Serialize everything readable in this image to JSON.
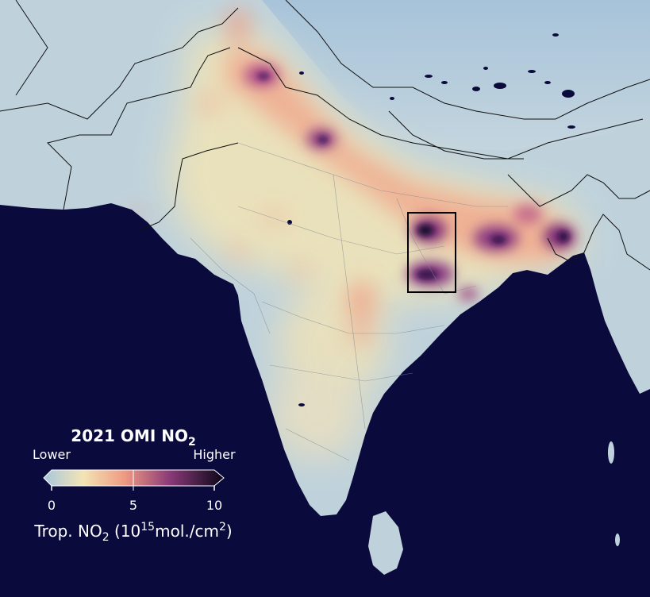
{
  "legend": {
    "title_main": "2021 OMI NO",
    "title_sub": "2",
    "label_low": "Lower",
    "label_high": "Higher",
    "ticks": [
      "0",
      "5",
      "10"
    ],
    "unit_a": "Trop. NO",
    "unit_b": "2",
    "unit_c": " (10",
    "unit_d": "15",
    "unit_e": "mol./cm",
    "unit_f": "2",
    "unit_g": ")",
    "range": [
      0,
      10
    ]
  },
  "colors": {
    "ocean": "#0a0a3c",
    "land": "#b7cbd6",
    "himalaya": "#a9c4d9",
    "low": "#f3e5b4",
    "mid": "#ef9a88",
    "high": "#7a2e76",
    "max": "#100a2c",
    "box": "#000000"
  },
  "highlight_box": {
    "label": "",
    "description": ""
  }
}
